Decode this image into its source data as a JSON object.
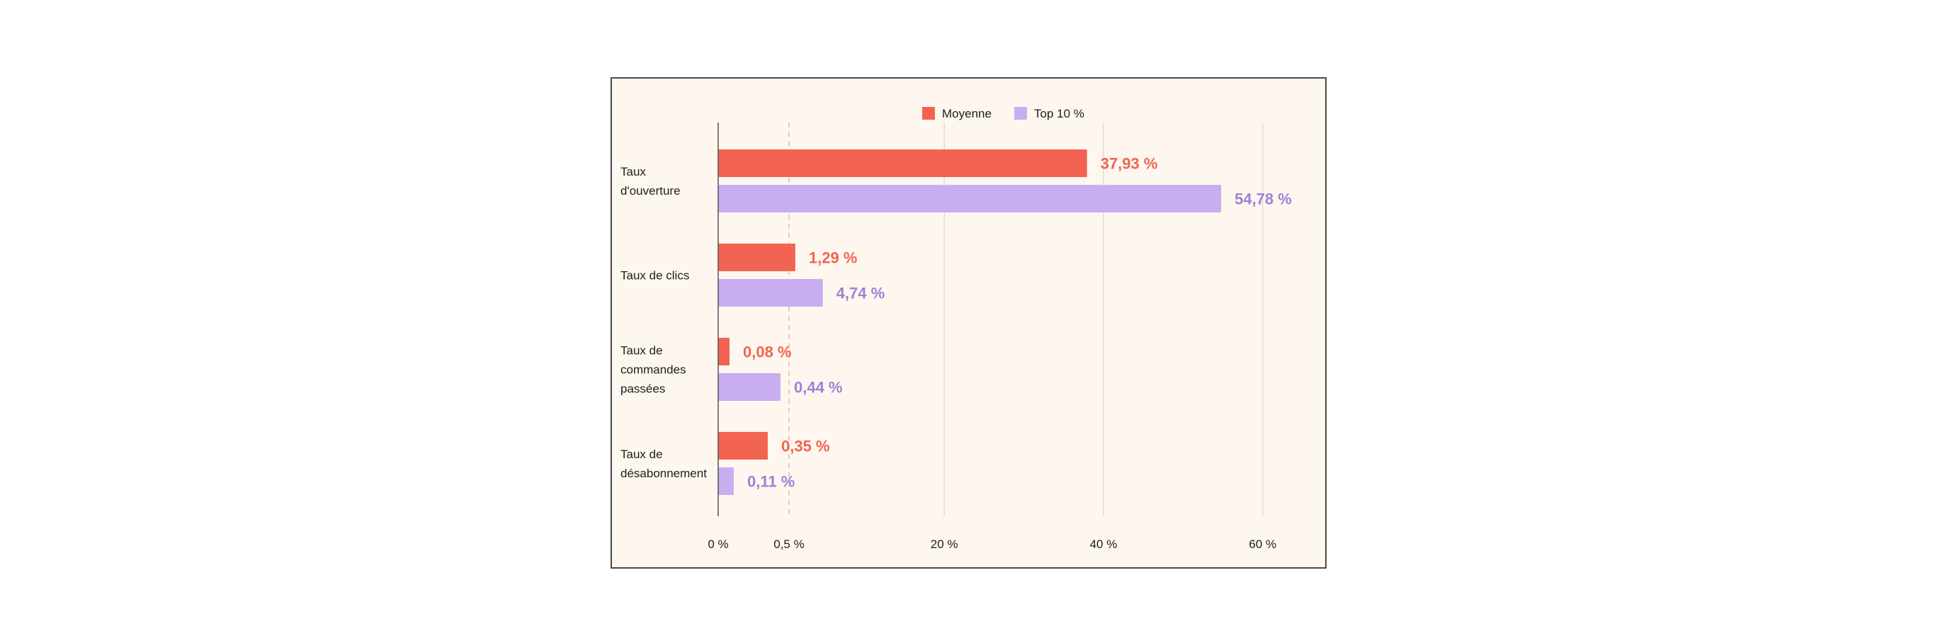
{
  "chart_data": {
    "type": "bar",
    "orientation": "horizontal",
    "categories": [
      [
        "Taux",
        "d'ouverture"
      ],
      [
        "Taux de clics"
      ],
      [
        "Taux de",
        "commandes",
        "passées"
      ],
      [
        "Taux de",
        "désabonnement"
      ]
    ],
    "series": [
      {
        "name": "Moyenne",
        "color": "#f26451",
        "values": [
          37.93,
          1.29,
          0.08,
          0.35
        ],
        "labels": [
          "37,93 %",
          "1,29 %",
          "0,08 %",
          "0,35 %"
        ]
      },
      {
        "name": "Top 10 %",
        "color": "#c8aef0",
        "label_color": "#9a83d4",
        "values": [
          54.78,
          4.74,
          0.44,
          0.11
        ],
        "labels": [
          "54,78 %",
          "4,74 %",
          "0,44 %",
          "0,11 %"
        ]
      }
    ],
    "xticks": [
      {
        "value": 0,
        "label": "0 %"
      },
      {
        "value": 0.5,
        "label": "0,5 %"
      },
      {
        "value": 20,
        "label": "20 %"
      },
      {
        "value": 40,
        "label": "40 %"
      },
      {
        "value": 60,
        "label": "60 %"
      }
    ],
    "axis_scale": "broken: linear 0–0.5 %, then linear 0.5–60 %",
    "xlim": [
      0,
      60
    ],
    "grid": true,
    "legend_position": "top-center",
    "title": "",
    "xlabel": "",
    "ylabel": ""
  }
}
